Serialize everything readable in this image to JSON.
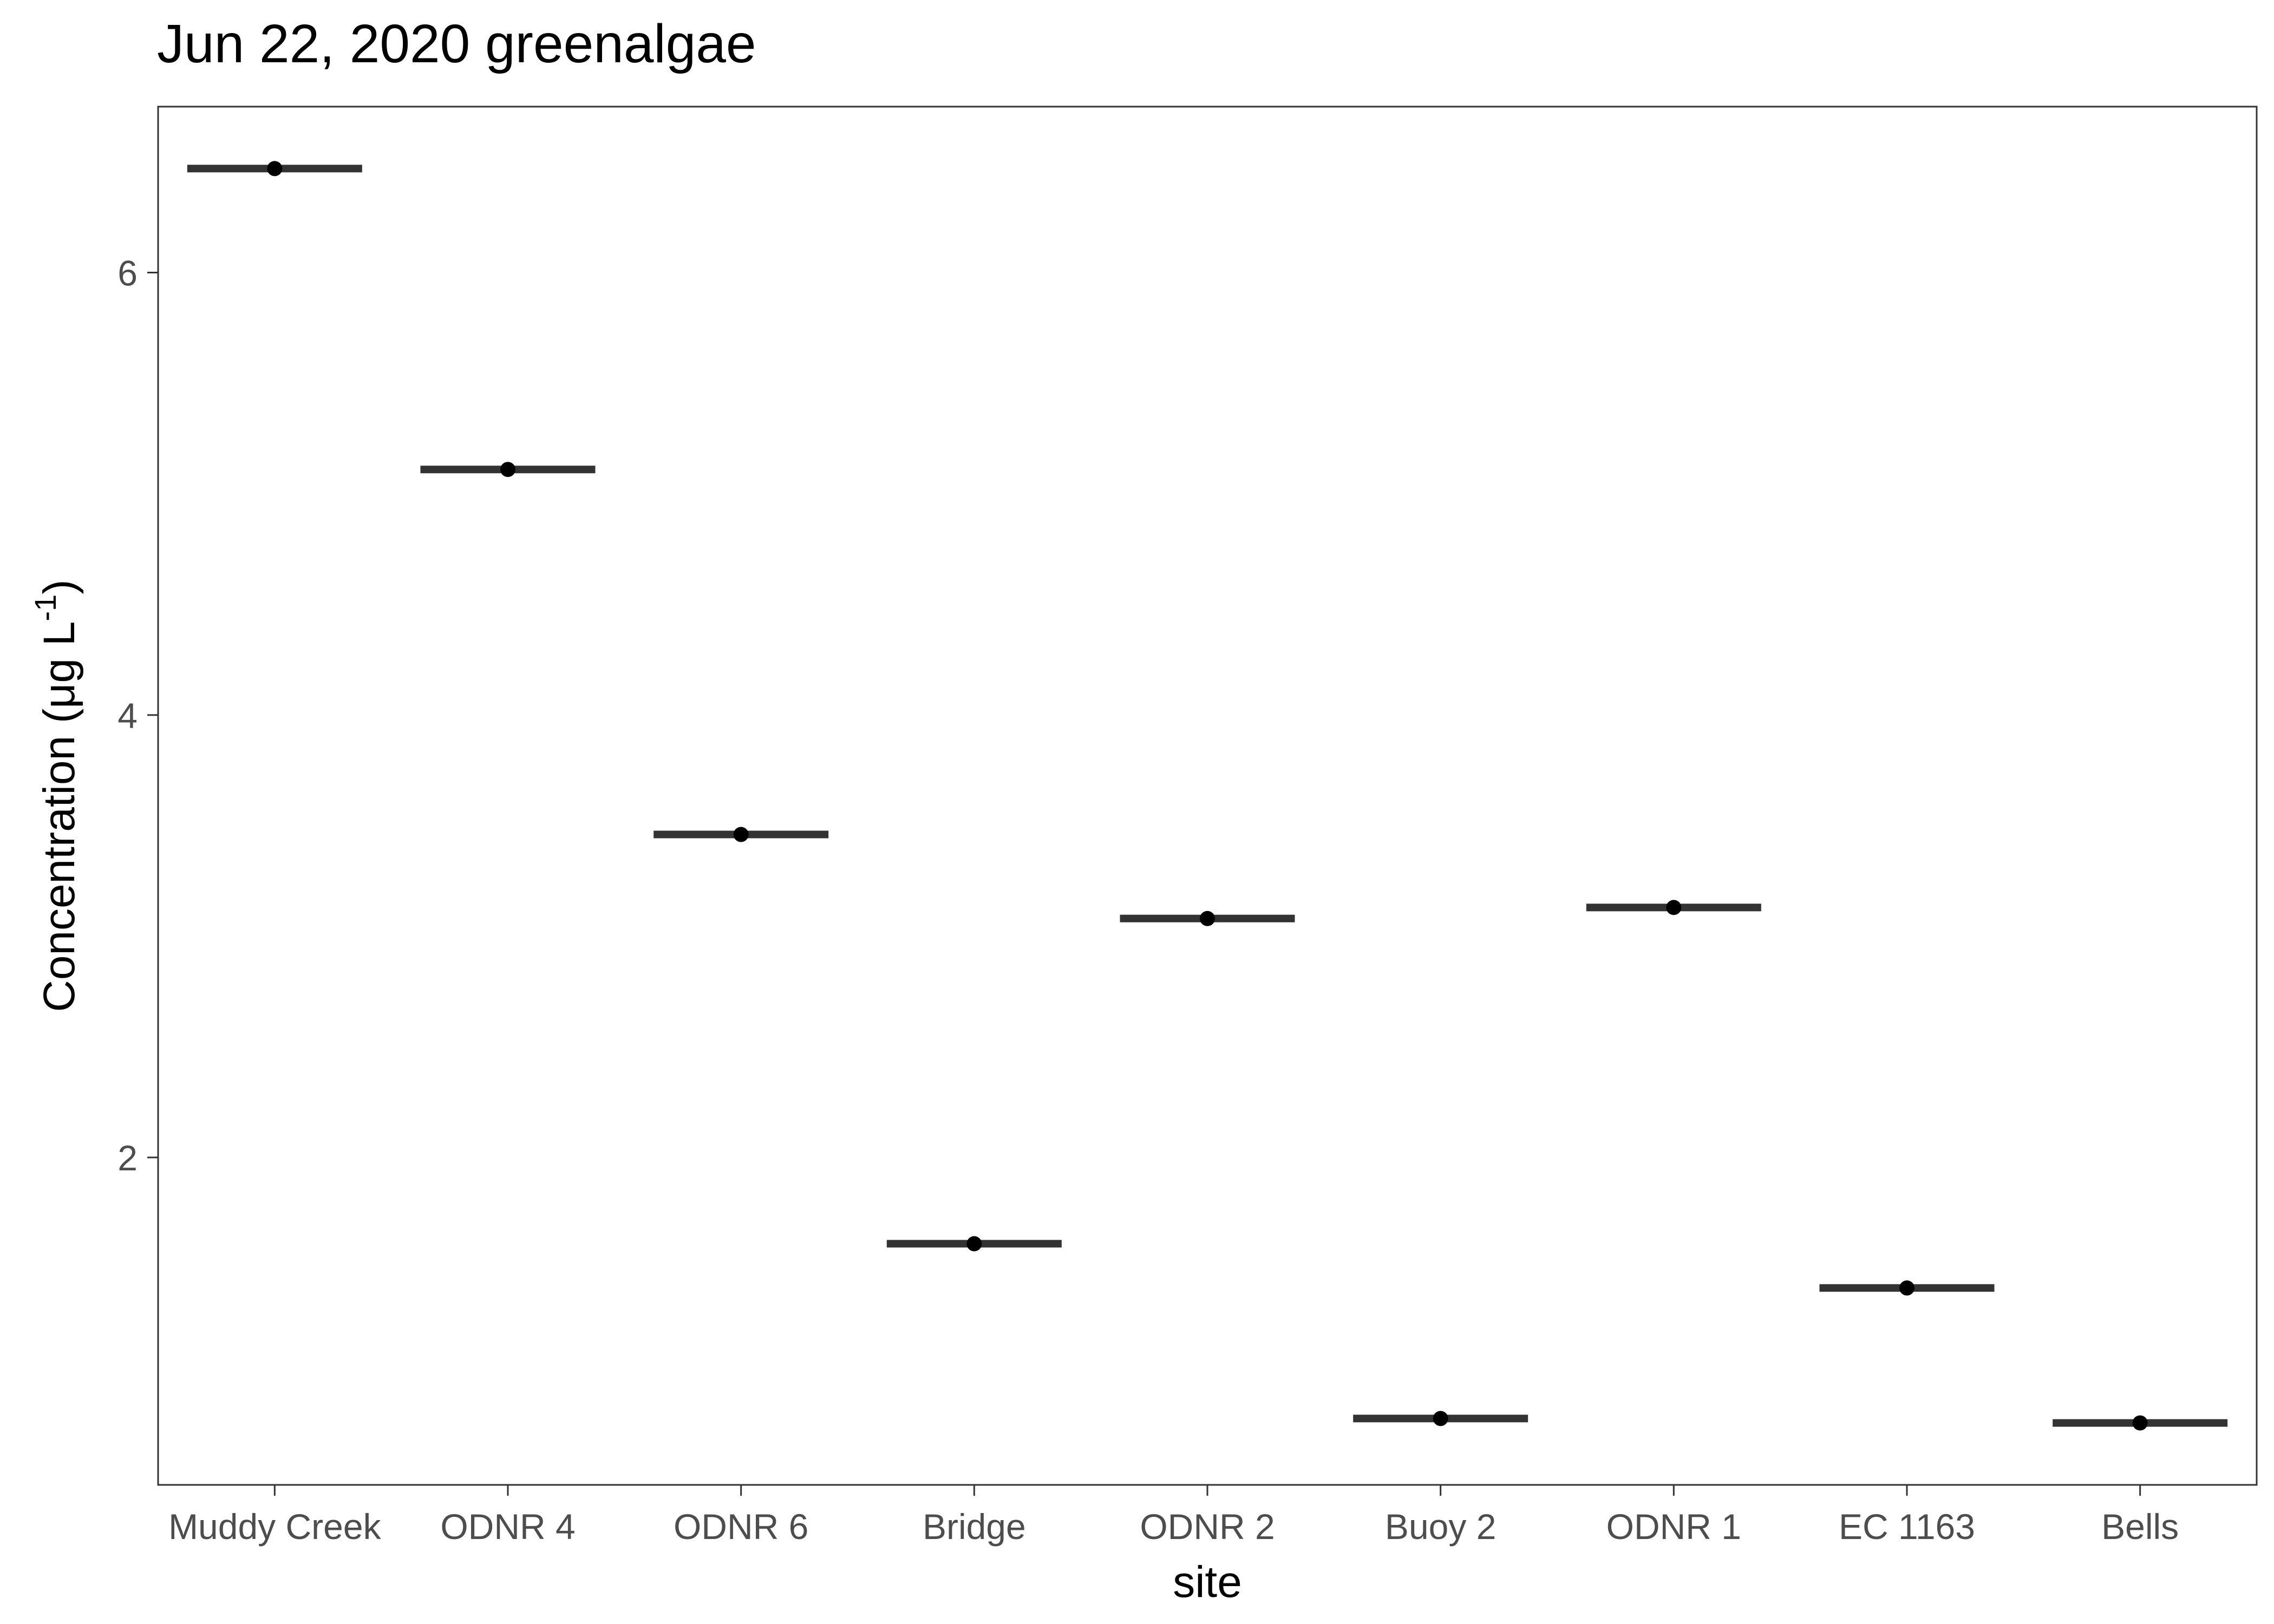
{
  "chart_data": {
    "type": "scatter",
    "title": "Jun 22, 2020 greenalgae",
    "xlabel": "site",
    "ylabel": "Concentration (μg L-1)",
    "ylabel_parts": {
      "main": "Concentration (μg L",
      "superscript": "-1",
      "close": ")"
    },
    "categories": [
      "Muddy Creek",
      "ODNR 4",
      "ODNR 6",
      "Bridge",
      "ODNR 2",
      "Buoy 2",
      "ODNR 1",
      "EC 1163",
      "Bells"
    ],
    "values": [
      6.47,
      5.11,
      3.46,
      1.61,
      3.08,
      0.82,
      3.13,
      1.41,
      0.8
    ],
    "yticks": [
      2,
      4,
      6
    ],
    "ytick_labels": [
      "2",
      "4",
      "6"
    ],
    "ylim": [
      0.52,
      6.75
    ],
    "grid": false,
    "colors": {
      "point": "#000000",
      "median_bar": "#333333",
      "tick_label": "#4d4d4d",
      "border": "#333333"
    }
  }
}
